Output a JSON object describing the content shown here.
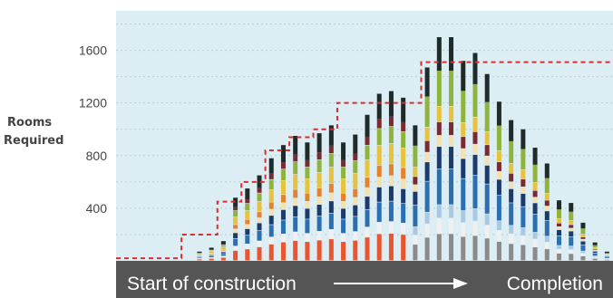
{
  "chart_data": {
    "type": "bar",
    "stacked": true,
    "ylabel_lines": [
      "Rooms",
      "Required"
    ],
    "yticks": [
      400,
      800,
      1200,
      1600
    ],
    "ylim": [
      0,
      1900
    ],
    "x_axis_caption": {
      "start": "Start of construction",
      "end": "Completion"
    },
    "grid": true,
    "bar_count": 41,
    "totals": [
      0,
      0,
      0,
      0,
      0,
      0,
      70,
      100,
      150,
      480,
      550,
      650,
      780,
      880,
      950,
      900,
      970,
      1030,
      900,
      960,
      1110,
      1270,
      1290,
      1240,
      1030,
      1470,
      1700,
      1700,
      1520,
      1580,
      1420,
      1210,
      1070,
      1000,
      860,
      740,
      460,
      440,
      290,
      140,
      70
    ],
    "stack_order_bottom_to_top": [
      "red",
      "white",
      "blue",
      "navy",
      "cream",
      "orange",
      "yellow",
      "green",
      "maroon",
      "dark",
      "light-blue",
      "gray"
    ],
    "requirement_line": {
      "name": "",
      "style": "dashed",
      "color": "#d62f2f",
      "steps": [
        {
          "from_bar": 0,
          "to_bar": 5,
          "value": 20
        },
        {
          "from_bar": 5,
          "to_bar": 8,
          "value": 200
        },
        {
          "from_bar": 8,
          "to_bar": 10,
          "value": 450
        },
        {
          "from_bar": 10,
          "to_bar": 12,
          "value": 600
        },
        {
          "from_bar": 12,
          "to_bar": 14,
          "value": 840
        },
        {
          "from_bar": 14,
          "to_bar": 16,
          "value": 940
        },
        {
          "from_bar": 16,
          "to_bar": 18,
          "value": 1000
        },
        {
          "from_bar": 18,
          "to_bar": 24,
          "value": 1200
        },
        {
          "from_bar": 24,
          "to_bar": 25,
          "value": 1200
        },
        {
          "from_bar": 25,
          "to_bar": 41,
          "value": 1510
        }
      ]
    }
  },
  "colors": {
    "plot_bg": "#dcedf4",
    "grid": "#b9cdd7",
    "caption_band": "#555555",
    "caption_text": "#ffffff",
    "tick_text": "#444444",
    "series": {
      "red": "#e8552e",
      "white": "#eef0f2",
      "blue": "#2b6fb0",
      "navy": "#1c3a6b",
      "cream": "#f3e1b0",
      "orange": "#e3832d",
      "yellow": "#e7c23a",
      "green": "#8fb33d",
      "maroon": "#7a2a32",
      "dark": "#1f2b2a",
      "light-blue": "#a9c9e2",
      "gray": "#8a8a8a"
    }
  }
}
